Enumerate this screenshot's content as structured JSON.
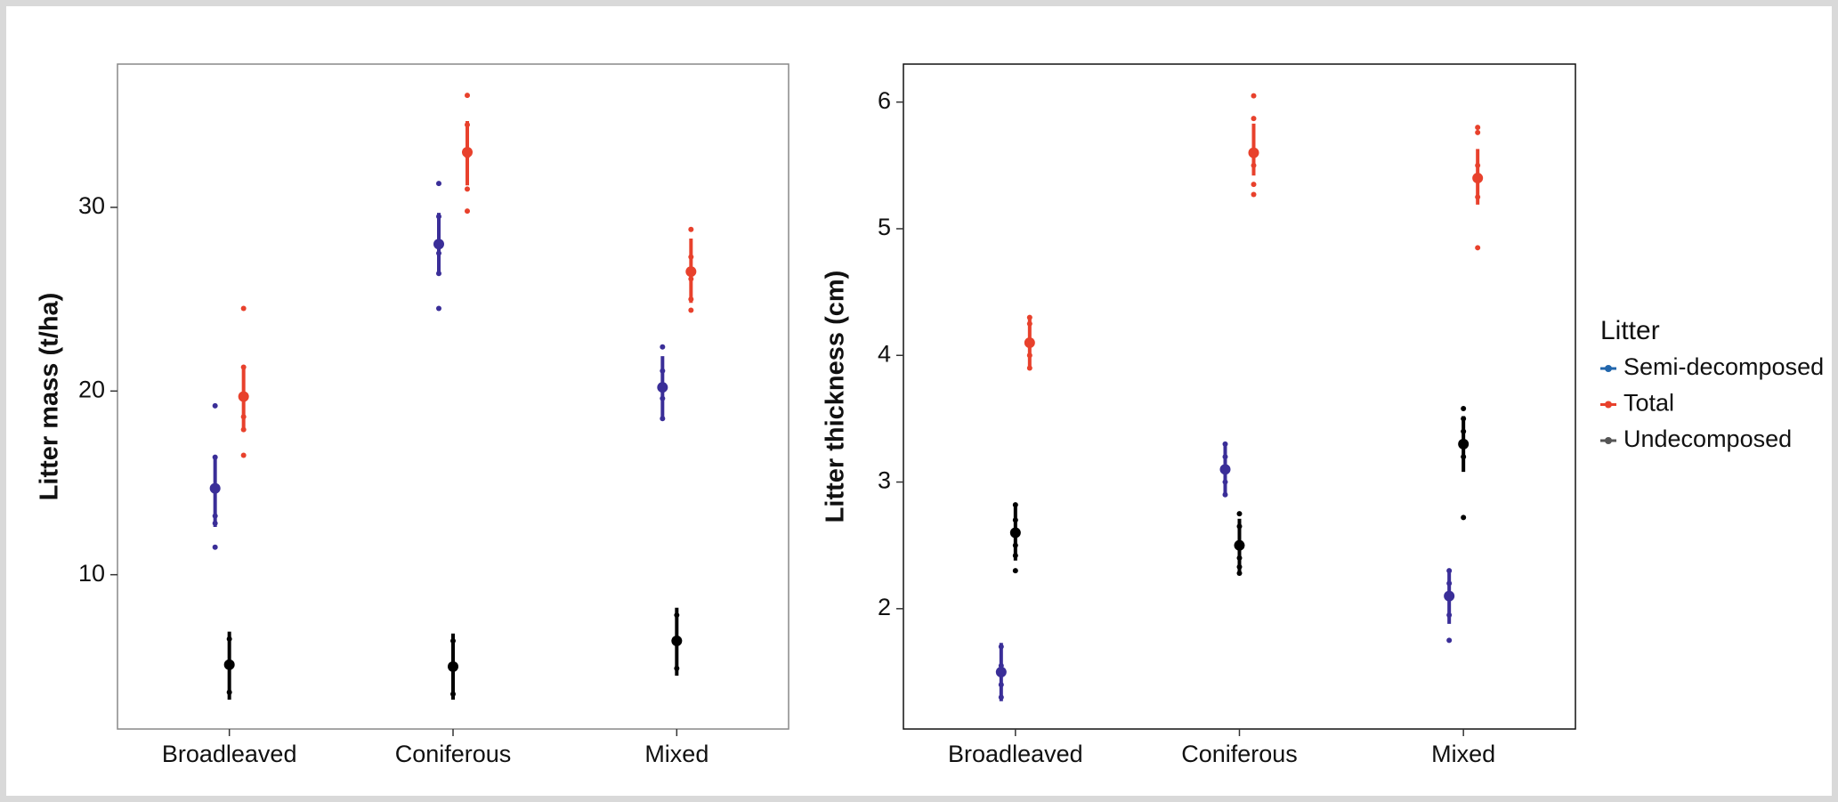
{
  "chart_data": [
    {
      "type": "dot",
      "y_label": "Litter mass (t/ha)",
      "categories": [
        "Broadleaved",
        "Coniferous",
        "Mixed"
      ],
      "ylim": [
        1.6,
        37.8
      ],
      "yticks": [
        10,
        20,
        30
      ],
      "series": [
        {
          "color": "#3a2e98",
          "values": [
            14.7,
            28.0,
            20.2
          ],
          "lower": [
            12.6,
            26.3,
            18.5
          ],
          "upper": [
            16.5,
            29.7,
            21.9
          ],
          "points": [
            [
              19.2,
              16.4,
              13.2,
              12.8,
              11.5
            ],
            [
              31.3,
              29.5,
              27.5,
              26.4,
              24.5
            ],
            [
              22.4,
              21.1,
              19.6,
              18.5
            ]
          ]
        },
        {
          "color": "#e8412c",
          "values": [
            19.7,
            33.0,
            26.5
          ],
          "lower": [
            18.0,
            31.2,
            24.8
          ],
          "upper": [
            21.4,
            34.7,
            28.3
          ],
          "points": [
            [
              24.5,
              21.3,
              18.6,
              17.9,
              16.5
            ],
            [
              36.1,
              34.5,
              32.8,
              31.0,
              29.8
            ],
            [
              28.8,
              27.3,
              26.1,
              25.0,
              24.4
            ]
          ]
        },
        {
          "color": "#000000",
          "values": [
            5.1,
            5.0,
            6.4
          ],
          "lower": [
            3.2,
            3.2,
            4.5
          ],
          "upper": [
            6.9,
            6.8,
            8.2
          ],
          "points": [
            [
              6.5,
              5.0,
              3.6
            ],
            [
              6.4,
              4.9,
              3.5
            ],
            [
              7.8,
              6.4,
              4.9
            ]
          ]
        }
      ]
    },
    {
      "type": "dot",
      "y_label": "Litter thickness (cm)",
      "categories": [
        "Broadleaved",
        "Coniferous",
        "Mixed"
      ],
      "ylim": [
        1.05,
        6.3
      ],
      "yticks": [
        2,
        3,
        4,
        5,
        6
      ],
      "legend_title": "Litter",
      "series": [
        {
          "name": "Semi-decomposed",
          "color": "#3a2e98",
          "legend_color": "#2166ac",
          "values": [
            1.5,
            3.1,
            2.1
          ],
          "lower": [
            1.27,
            2.9,
            1.88
          ],
          "upper": [
            1.73,
            3.3,
            2.3
          ],
          "points": [
            [
              1.7,
              1.55,
              1.4,
              1.3
            ],
            [
              3.3,
              3.2,
              3.0,
              2.9
            ],
            [
              2.3,
              2.2,
              1.95,
              1.75
            ]
          ]
        },
        {
          "name": "Total",
          "color": "#e8412c",
          "legend_color": "#e8412c",
          "values": [
            4.1,
            5.6,
            5.4
          ],
          "lower": [
            3.9,
            5.42,
            5.19
          ],
          "upper": [
            4.3,
            5.83,
            5.63
          ],
          "points": [
            [
              4.3,
              4.25,
              4.0,
              3.9
            ],
            [
              6.05,
              5.87,
              5.5,
              5.35,
              5.27
            ],
            [
              5.8,
              5.76,
              5.5,
              5.25,
              4.85
            ]
          ]
        },
        {
          "name": "Undecomposed",
          "color": "#000000",
          "legend_color": "#555555",
          "values": [
            2.6,
            2.5,
            3.3
          ],
          "lower": [
            2.38,
            2.29,
            3.08
          ],
          "upper": [
            2.82,
            2.71,
            3.52
          ],
          "points": [
            [
              2.82,
              2.7,
              2.5,
              2.42,
              2.3
            ],
            [
              2.75,
              2.65,
              2.4,
              2.33,
              2.28
            ],
            [
              3.58,
              3.5,
              3.4,
              3.2,
              2.72
            ]
          ]
        }
      ]
    }
  ]
}
